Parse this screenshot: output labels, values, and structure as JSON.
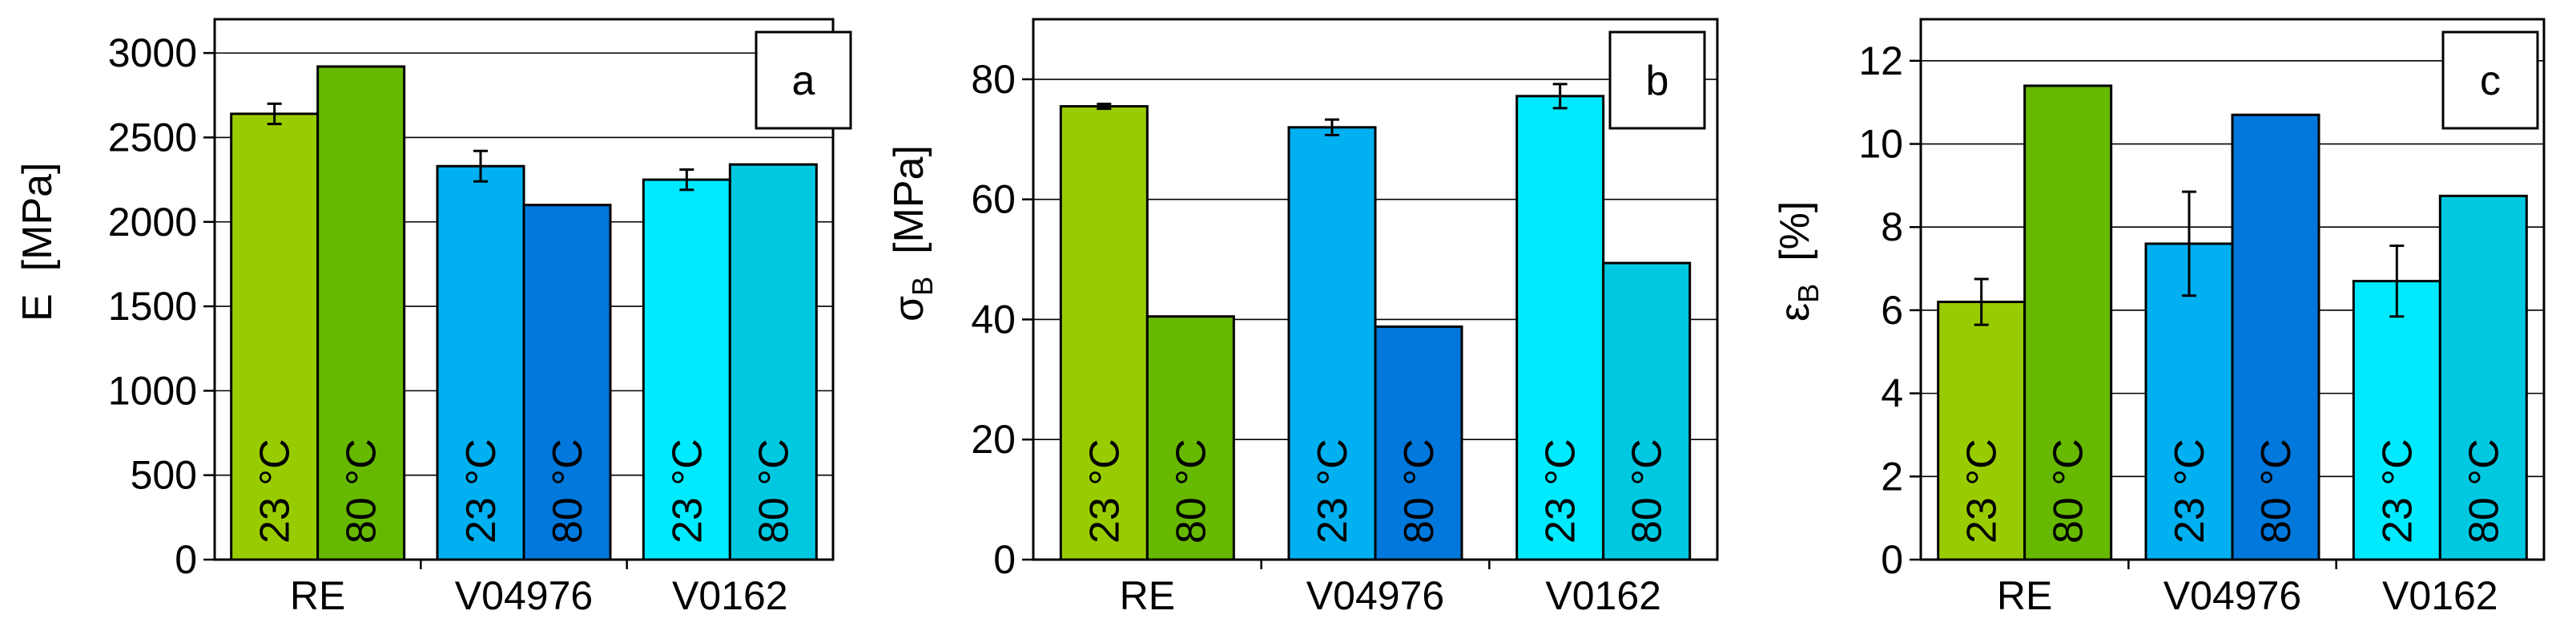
{
  "figure": {
    "panels": [
      {
        "id": "a",
        "tag": "a",
        "ylabel_main": "E",
        "ylabel_sub": "",
        "ylabel_unit": "[MPa]",
        "ylim": [
          0,
          3200
        ],
        "yticks": [
          0,
          500,
          1000,
          1500,
          2000,
          2500,
          3000
        ]
      },
      {
        "id": "b",
        "tag": "b",
        "ylabel_main": "σ",
        "ylabel_sub": "B",
        "ylabel_unit": "[MPa]",
        "ylim": [
          0,
          90
        ],
        "yticks": [
          0,
          20,
          40,
          60,
          80
        ]
      },
      {
        "id": "c",
        "tag": "c",
        "ylabel_main": "ε",
        "ylabel_sub": "B",
        "ylabel_unit": "[%]",
        "ylim": [
          0,
          13
        ],
        "yticks": [
          0,
          2,
          4,
          6,
          8,
          10,
          12
        ]
      }
    ]
  },
  "chart_data": [
    {
      "type": "bar",
      "title": "",
      "xlabel": "",
      "ylabel": "E [MPa]",
      "ylim": [
        0,
        3200
      ],
      "grid": "horizontal",
      "categories": [
        "RE",
        "V04976",
        "V0162"
      ],
      "series": [
        {
          "name": "23 °C",
          "values": [
            2640,
            2330,
            2250
          ],
          "errors": [
            60,
            90,
            60
          ],
          "colors": [
            "#99cc00",
            "#00b0f0",
            "#00eaff"
          ]
        },
        {
          "name": "80 °C",
          "values": [
            2920,
            2100,
            2340
          ],
          "errors": [
            null,
            null,
            null
          ],
          "colors": [
            "#66b800",
            "#0078dc",
            "#00c8e0"
          ]
        }
      ]
    },
    {
      "type": "bar",
      "title": "",
      "xlabel": "",
      "ylabel": "σB [MPa]",
      "ylim": [
        0,
        90
      ],
      "grid": "horizontal",
      "categories": [
        "RE",
        "V04976",
        "V0162"
      ],
      "series": [
        {
          "name": "23 °C",
          "values": [
            75.5,
            72,
            77.2
          ],
          "errors": [
            0.4,
            1.3,
            2.0
          ],
          "colors": [
            "#99cc00",
            "#00b0f0",
            "#00eaff"
          ]
        },
        {
          "name": "80 °C",
          "values": [
            40.5,
            38.8,
            49.4
          ],
          "errors": [
            null,
            null,
            null
          ],
          "colors": [
            "#66b800",
            "#0078dc",
            "#00c8e0"
          ]
        }
      ]
    },
    {
      "type": "bar",
      "title": "",
      "xlabel": "",
      "ylabel": "εB [%]",
      "ylim": [
        0,
        13
      ],
      "grid": "horizontal",
      "categories": [
        "RE",
        "V04976",
        "V0162"
      ],
      "series": [
        {
          "name": "23 °C",
          "values": [
            6.2,
            7.6,
            6.7
          ],
          "errors": [
            0.55,
            1.25,
            0.85
          ],
          "colors": [
            "#99cc00",
            "#00b0f0",
            "#00eaff"
          ]
        },
        {
          "name": "80 °C",
          "values": [
            11.4,
            10.7,
            8.75
          ],
          "errors": [
            null,
            null,
            null
          ],
          "colors": [
            "#66b800",
            "#0078dc",
            "#00c8e0"
          ]
        }
      ]
    }
  ]
}
